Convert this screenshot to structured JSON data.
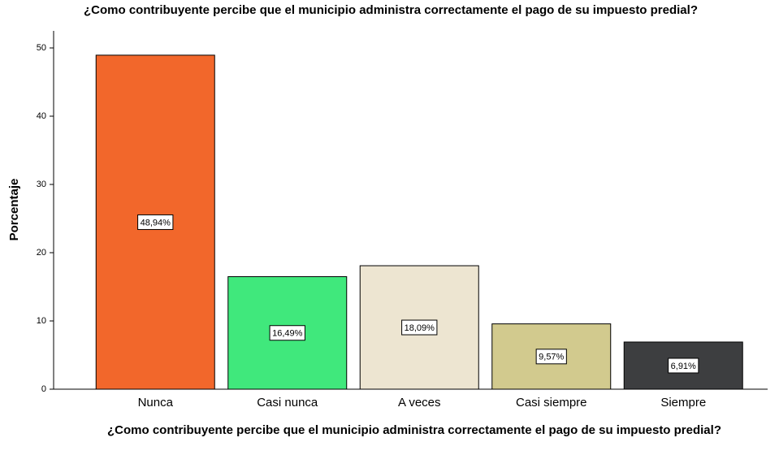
{
  "chart_data": {
    "type": "bar",
    "title": "¿Como contribuyente percibe que el municipio administra correctamente el pago de su impuesto predial?",
    "x_label": "¿Como contribuyente percibe que el municipio administra correctamente el pago de su impuesto predial?",
    "y_label": "Porcentaje",
    "categories": [
      "Nunca",
      "Casi nunca",
      "A veces",
      "Casi siempre",
      "Siempre"
    ],
    "values": [
      48.94,
      16.49,
      18.09,
      9.57,
      6.91
    ],
    "value_labels": [
      "48,94%",
      "16,49%",
      "18,09%",
      "9,57%",
      "6,91%"
    ],
    "colors": [
      "#f2672b",
      "#40e87c",
      "#ede5d1",
      "#d2ca8e",
      "#3d3e40"
    ],
    "ylim": [
      0,
      52.5
    ],
    "yticks": [
      0,
      10,
      20,
      30,
      40,
      50
    ],
    "grid": false
  }
}
